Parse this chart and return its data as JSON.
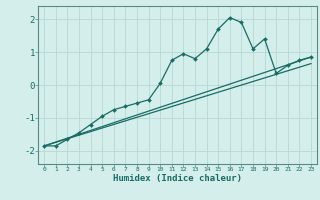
{
  "xlabel": "Humidex (Indice chaleur)",
  "bg_color": "#d4eeeb",
  "grid_color": "#b8d8d4",
  "line_color": "#1a6b65",
  "x_values": [
    0,
    1,
    2,
    3,
    4,
    5,
    6,
    7,
    8,
    9,
    10,
    11,
    12,
    13,
    14,
    15,
    16,
    17,
    18,
    19,
    20,
    21,
    22,
    23
  ],
  "series1": [
    -1.85,
    -1.85,
    -1.65,
    -1.45,
    -1.2,
    -0.95,
    -0.75,
    -0.65,
    -0.55,
    -0.45,
    0.05,
    0.75,
    0.95,
    0.8,
    1.1,
    1.7,
    2.05,
    1.9,
    1.1,
    1.4,
    0.35,
    0.6,
    0.75,
    0.85
  ],
  "series2_x": [
    0,
    23
  ],
  "series2_y": [
    -1.85,
    0.85
  ],
  "series3_x": [
    0,
    23
  ],
  "series3_y": [
    -1.85,
    0.65
  ],
  "ylim": [
    -2.4,
    2.4
  ],
  "xlim": [
    -0.5,
    23.5
  ],
  "yticks": [
    -2,
    -1,
    0,
    1,
    2
  ],
  "xticks": [
    0,
    1,
    2,
    3,
    4,
    5,
    6,
    7,
    8,
    9,
    10,
    11,
    12,
    13,
    14,
    15,
    16,
    17,
    18,
    19,
    20,
    21,
    22,
    23
  ]
}
